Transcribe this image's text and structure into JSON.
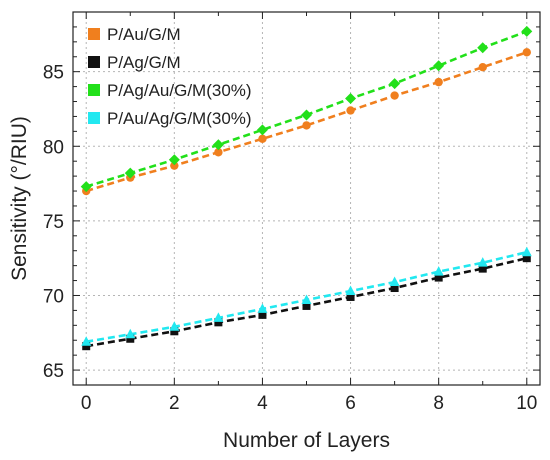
{
  "chart_data": {
    "type": "line",
    "xlabel": "Number of Layers",
    "ylabel": "Sensitivity (°/RIU)",
    "xlim": [
      -0.3,
      10.3
    ],
    "ylim": [
      64,
      89
    ],
    "xticks": [
      0,
      2,
      4,
      6,
      8,
      10
    ],
    "yticks": [
      65,
      70,
      75,
      80,
      85
    ],
    "grid": true,
    "legend_position": "top-left",
    "x": [
      0,
      1,
      2,
      3,
      4,
      5,
      6,
      7,
      8,
      9,
      10
    ],
    "series": [
      {
        "name": "P/Au/G/M",
        "color": "#f07f1e",
        "marker": "circle",
        "values": [
          77.0,
          77.9,
          78.7,
          79.6,
          80.5,
          81.4,
          82.4,
          83.4,
          84.3,
          85.3,
          86.3
        ]
      },
      {
        "name": "P/Ag/G/M",
        "color": "#111111",
        "marker": "square",
        "values": [
          66.6,
          67.1,
          67.6,
          68.2,
          68.7,
          69.3,
          69.9,
          70.5,
          71.2,
          71.8,
          72.5
        ]
      },
      {
        "name": "P/Ag/Au/G/M(30%)",
        "color": "#22e01a",
        "marker": "diamond",
        "values": [
          77.3,
          78.2,
          79.1,
          80.1,
          81.1,
          82.1,
          83.2,
          84.2,
          85.4,
          86.6,
          87.7
        ]
      },
      {
        "name": "P/Au/Ag/G/M(30%)",
        "color": "#22e8f0",
        "marker": "triangle",
        "values": [
          66.9,
          67.4,
          67.9,
          68.5,
          69.1,
          69.7,
          70.3,
          70.9,
          71.6,
          72.2,
          72.9
        ]
      }
    ]
  }
}
